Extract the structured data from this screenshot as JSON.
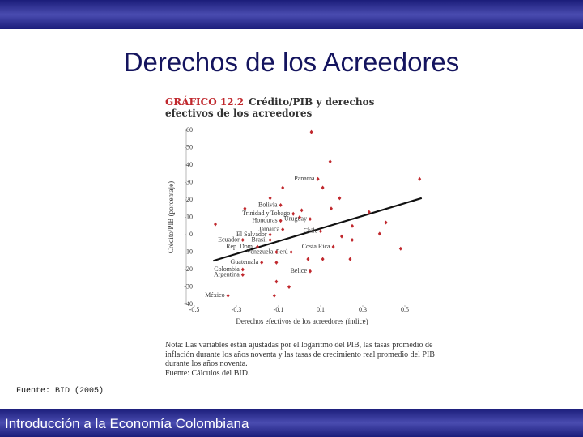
{
  "slide": {
    "title": "Derechos de los Acreedores",
    "source": "Fuente: BID (2005)",
    "footer": "Introducción a la Economía Colombiana"
  },
  "chart_data": {
    "type": "scatter",
    "figure_label": "GRÁFICO 12.2",
    "title": "Crédito/PIB y derechos efectivos de los acreedores",
    "xlabel": "Derechos efectivos de los acreedores (índice)",
    "ylabel": "Crédito/PIB (porcentaje)",
    "note": "Nota: Las variables están ajustadas por el logaritmo del PIB, las tasas promedio de inflación durante los años noventa y las tasas de crecimiento real promedio del PIB durante los años noventa.",
    "note_source": "Fuente: Cálculos del BID.",
    "xlim": [
      -0.5,
      0.6
    ],
    "ylim": [
      -40,
      60
    ],
    "xticks": [
      -0.5,
      -0.3,
      -0.1,
      0.1,
      0.3,
      0.5
    ],
    "yticks": [
      -40,
      -30,
      -20,
      -10,
      0,
      10,
      20,
      30,
      40,
      50,
      60
    ],
    "color": "#c0282d",
    "x": [
      0.056,
      0.145,
      0.57,
      0.087,
      -0.08,
      0.11,
      0.19,
      -0.14,
      -0.09,
      -0.26,
      0.01,
      0.15,
      -0.03,
      -0.4,
      0.0,
      0.05,
      -0.09,
      0.33,
      0.41,
      0.25,
      0.38,
      0.1,
      0.2,
      0.25,
      -0.08,
      -0.14,
      -0.27,
      -0.14,
      -0.2,
      0.16,
      -0.04,
      0.11,
      0.24,
      0.48,
      -0.18,
      -0.27,
      -0.27,
      -0.11,
      0.04,
      0.05,
      -0.11,
      -0.05,
      -0.12,
      -0.34,
      -0.11
    ],
    "y": [
      59,
      42,
      32,
      32,
      27,
      27,
      21,
      21,
      17,
      15,
      14,
      15,
      12,
      6,
      10,
      9,
      8,
      13,
      7,
      5,
      0.5,
      2,
      -1,
      -3,
      3,
      0,
      -3,
      -3,
      -7,
      -7,
      -10,
      -14,
      -14,
      -8,
      -16,
      -20,
      -23,
      -16,
      -14,
      -21,
      -27,
      -30,
      -35,
      -35,
      -10
    ],
    "labels": [
      null,
      null,
      null,
      "Panamá",
      null,
      null,
      null,
      null,
      "Bolivia",
      null,
      null,
      null,
      "Trinidad y Tobago",
      null,
      null,
      "Uruguay",
      "Honduras",
      null,
      null,
      null,
      null,
      "Chile",
      null,
      null,
      "Jamaica",
      "El Salvador",
      "Ecuador",
      "Brasil",
      "Rep. Dom.",
      "Costa Rica",
      "Perú",
      null,
      null,
      null,
      "Guatemala",
      "Colombia",
      "Argentina",
      null,
      null,
      "Belice",
      null,
      null,
      null,
      "México",
      "Venezuela"
    ],
    "trend": {
      "x": [
        -0.41,
        0.58
      ],
      "y": [
        -15,
        21
      ]
    }
  }
}
